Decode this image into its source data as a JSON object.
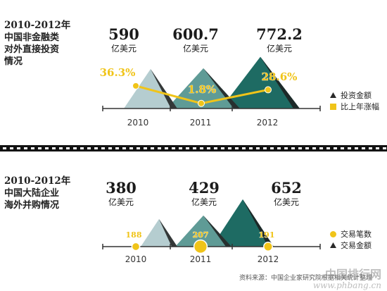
{
  "chart_data": [
    {
      "type": "area",
      "title": "2010-2012年 中国非金融类 对外直接投资 情况",
      "title_lines": [
        "2010-2012年",
        "中国非金融类",
        "对外直接投资",
        "情况"
      ],
      "categories": [
        "2010",
        "2011",
        "2012"
      ],
      "unit": "亿美元",
      "series": [
        {
          "name": "投资金额",
          "values": [
            590,
            600.7,
            772.2
          ],
          "value_labels": [
            "590",
            "600.7",
            "772.2"
          ],
          "colors": [
            "#b5cdd0",
            "#5f9b96",
            "#1e6b63"
          ]
        },
        {
          "name": "比上年涨幅",
          "values": [
            36.3,
            1.8,
            28.6
          ],
          "value_labels": [
            "36.3%",
            "1.8%",
            "28.6%"
          ],
          "color": "#f0c419"
        }
      ],
      "legend": [
        "投资金额",
        "比上年涨幅"
      ]
    },
    {
      "type": "area",
      "title": "2010-2012年 中国大陆企业 海外并购情况",
      "title_lines": [
        "2010-2012年",
        "中国大陆企业",
        "海外并购情况"
      ],
      "categories": [
        "2010",
        "2011",
        "2012"
      ],
      "unit": "亿美元",
      "series": [
        {
          "name": "交易金额",
          "values": [
            380,
            429,
            652
          ],
          "value_labels": [
            "380",
            "429",
            "652"
          ],
          "colors": [
            "#b5cdd0",
            "#5f9b96",
            "#1e6b63"
          ]
        },
        {
          "name": "交易笔数",
          "values": [
            188,
            207,
            191
          ],
          "value_labels": [
            "188",
            "207",
            "191"
          ],
          "color": "#f0c419"
        }
      ],
      "legend": [
        "交易笔数",
        "交易金额"
      ]
    }
  ],
  "source": "资料来源：中国企业家研究院根据相关统计整理",
  "watermark": {
    "line1": "中国排行网",
    "line2": "www.phbang.cn"
  }
}
